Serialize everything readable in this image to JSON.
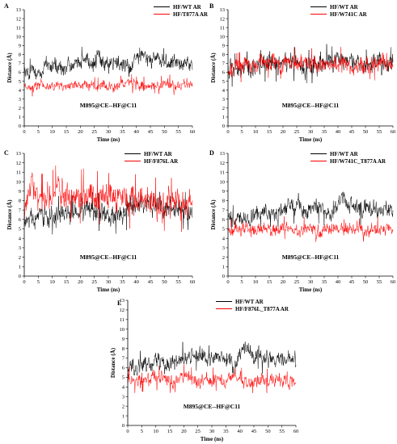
{
  "colors": {
    "wt": "#000000",
    "mutant": "#ff0000",
    "axis": "#000000"
  },
  "chart_data": [
    {
      "type": "line",
      "panel": "A",
      "xlabel": "Time (ns)",
      "ylabel": "Distance (Å)",
      "annotation": "M895@CE--HF@C11",
      "xlim": [
        0,
        60
      ],
      "ylim": [
        0,
        13
      ],
      "xticks": [
        0,
        5,
        10,
        15,
        20,
        25,
        30,
        35,
        40,
        45,
        50,
        55,
        60
      ],
      "yticks": [
        0,
        1,
        2,
        3,
        4,
        5,
        6,
        7,
        8,
        9,
        10,
        11,
        12,
        13
      ],
      "grid": false,
      "legend": "top-right",
      "series": [
        {
          "name": "HF/WT AR",
          "color": "#000000",
          "x": [
            0,
            2,
            4,
            6,
            8,
            10,
            12,
            14,
            16,
            18,
            20,
            22,
            24,
            26,
            28,
            30,
            32,
            34,
            36,
            38,
            40,
            42,
            44,
            46,
            48,
            50,
            52,
            54,
            56,
            58,
            60
          ],
          "y": [
            6.0,
            6.0,
            6.2,
            6.3,
            6.3,
            6.8,
            6.4,
            6.6,
            6.8,
            6.5,
            7.3,
            7.4,
            7.1,
            7.6,
            6.6,
            7.0,
            7.3,
            6.9,
            6.9,
            6.3,
            7.4,
            8.1,
            7.3,
            7.6,
            6.9,
            7.2,
            7.0,
            7.1,
            7.0,
            7.0,
            6.8
          ],
          "min": 5.2,
          "max": 9.2
        },
        {
          "name": "HF/T877A AR",
          "color": "#ff0000",
          "x": [
            0,
            2,
            4,
            6,
            8,
            10,
            12,
            14,
            16,
            18,
            20,
            22,
            24,
            26,
            28,
            30,
            32,
            34,
            36,
            38,
            40,
            42,
            44,
            46,
            48,
            50,
            52,
            54,
            56,
            58,
            60
          ],
          "y": [
            4.3,
            4.3,
            4.4,
            4.6,
            4.4,
            4.3,
            4.5,
            4.6,
            4.5,
            4.7,
            4.7,
            4.6,
            4.6,
            4.3,
            4.7,
            4.5,
            4.4,
            4.5,
            4.8,
            4.8,
            4.5,
            4.5,
            4.4,
            4.7,
            4.6,
            4.5,
            4.7,
            4.4,
            4.6,
            4.6,
            4.7
          ],
          "min": 3.3,
          "max": 6.0
        }
      ]
    },
    {
      "type": "line",
      "panel": "B",
      "xlabel": "Time (ns)",
      "ylabel": "Distance (Å)",
      "annotation": "M895@CE--HF@C11",
      "xlim": [
        0,
        60
      ],
      "ylim": [
        0,
        13
      ],
      "xticks": [
        0,
        5,
        10,
        15,
        20,
        25,
        30,
        35,
        40,
        45,
        50,
        55,
        60
      ],
      "yticks": [
        0,
        1,
        2,
        3,
        4,
        5,
        6,
        7,
        8,
        9,
        10,
        11,
        12,
        13
      ],
      "grid": false,
      "legend": "top-right",
      "series": [
        {
          "name": "HF/WT AR",
          "color": "#000000",
          "x": [
            0,
            2,
            4,
            6,
            8,
            10,
            12,
            14,
            16,
            18,
            20,
            22,
            24,
            26,
            28,
            30,
            32,
            34,
            36,
            38,
            40,
            42,
            44,
            46,
            48,
            50,
            52,
            54,
            56,
            58,
            60
          ],
          "y": [
            6.2,
            6.2,
            6.3,
            6.5,
            6.4,
            6.6,
            6.6,
            6.9,
            7.0,
            6.8,
            7.2,
            7.1,
            6.9,
            7.2,
            6.7,
            6.6,
            6.8,
            7.0,
            7.3,
            7.0,
            7.4,
            7.4,
            7.1,
            7.2,
            6.9,
            6.6,
            7.0,
            6.9,
            7.0,
            7.0,
            6.9
          ],
          "min": 4.4,
          "max": 9.3
        },
        {
          "name": "HF/W741C AR",
          "color": "#ff0000",
          "x": [
            0,
            2,
            4,
            6,
            8,
            10,
            12,
            14,
            16,
            18,
            20,
            22,
            24,
            26,
            28,
            30,
            32,
            34,
            36,
            38,
            40,
            42,
            44,
            46,
            48,
            50,
            52,
            54,
            56,
            58,
            60
          ],
          "y": [
            6.1,
            6.3,
            6.5,
            6.6,
            6.8,
            6.9,
            7.1,
            7.0,
            7.3,
            6.8,
            7.0,
            7.2,
            7.1,
            7.0,
            6.8,
            6.9,
            7.2,
            6.8,
            6.9,
            6.9,
            7.0,
            7.2,
            6.7,
            6.7,
            6.6,
            6.7,
            7.0,
            6.7,
            7.1,
            7.0,
            6.8
          ],
          "min": 4.9,
          "max": 9.4
        }
      ]
    },
    {
      "type": "line",
      "panel": "C",
      "xlabel": "Time (ns)",
      "ylabel": "Distance (Å)",
      "annotation": "M895@CE--HF@C11",
      "xlim": [
        0,
        60
      ],
      "ylim": [
        0,
        13
      ],
      "xticks": [
        0,
        5,
        10,
        15,
        20,
        25,
        30,
        35,
        40,
        45,
        50,
        55,
        60
      ],
      "yticks": [
        0,
        1,
        2,
        3,
        4,
        5,
        6,
        7,
        8,
        9,
        10,
        11,
        12,
        13
      ],
      "grid": false,
      "legend": "top-right",
      "series": [
        {
          "name": "HF/WT AR",
          "color": "#000000",
          "x": [
            0,
            2,
            4,
            6,
            8,
            10,
            12,
            14,
            16,
            18,
            20,
            22,
            24,
            26,
            28,
            30,
            32,
            34,
            36,
            38,
            40,
            42,
            44,
            46,
            48,
            50,
            52,
            54,
            56,
            58,
            60
          ],
          "y": [
            5.8,
            6.0,
            6.1,
            6.3,
            6.4,
            6.4,
            6.5,
            6.5,
            6.7,
            6.5,
            6.8,
            7.0,
            6.9,
            6.9,
            6.5,
            6.4,
            6.5,
            6.4,
            6.6,
            7.7,
            7.6,
            7.7,
            7.5,
            7.4,
            7.6,
            7.0,
            7.1,
            6.9,
            7.0,
            6.9,
            6.8
          ],
          "min": 3.8,
          "max": 9.0
        },
        {
          "name": "HF/F876L AR",
          "color": "#ff0000",
          "x": [
            0,
            1,
            2,
            3,
            4,
            6,
            8,
            10,
            12,
            14,
            16,
            18,
            20,
            22,
            24,
            26,
            28,
            30,
            32,
            34,
            36,
            38,
            40,
            42,
            44,
            46,
            48,
            50,
            52,
            54,
            56,
            58,
            60
          ],
          "y": [
            6.0,
            9.0,
            10.5,
            9.8,
            8.4,
            8.0,
            8.1,
            8.3,
            9.3,
            8.7,
            8.5,
            8.7,
            8.4,
            8.7,
            8.4,
            8.3,
            8.3,
            8.1,
            8.2,
            8.0,
            8.1,
            7.8,
            8.0,
            7.8,
            7.6,
            7.7,
            7.5,
            7.6,
            7.6,
            7.5,
            7.5,
            7.6,
            7.6
          ],
          "min": 4.3,
          "max": 11.7
        }
      ]
    },
    {
      "type": "line",
      "panel": "D",
      "xlabel": "Time (ns)",
      "ylabel": "Distance (Å)",
      "annotation": "M895@CE--HF@C11",
      "xlim": [
        0,
        60
      ],
      "ylim": [
        0,
        13
      ],
      "xticks": [
        0,
        5,
        10,
        15,
        20,
        25,
        30,
        35,
        40,
        45,
        50,
        55,
        60
      ],
      "yticks": [
        0,
        1,
        2,
        3,
        4,
        5,
        6,
        7,
        8,
        9,
        10,
        11,
        12,
        13
      ],
      "grid": false,
      "legend": "top-right",
      "series": [
        {
          "name": "HF/WT AR",
          "color": "#000000",
          "x": [
            0,
            2,
            4,
            6,
            8,
            10,
            12,
            14,
            16,
            18,
            20,
            22,
            24,
            26,
            28,
            30,
            32,
            34,
            36,
            38,
            40,
            42,
            44,
            46,
            48,
            50,
            52,
            54,
            56,
            58,
            60
          ],
          "y": [
            6.0,
            6.0,
            6.2,
            6.3,
            6.3,
            6.8,
            6.4,
            6.6,
            6.8,
            6.5,
            7.3,
            7.4,
            7.1,
            7.6,
            6.6,
            7.0,
            7.3,
            6.9,
            6.9,
            6.3,
            7.4,
            8.1,
            7.3,
            7.6,
            6.9,
            7.2,
            7.0,
            7.1,
            7.0,
            7.0,
            6.8
          ],
          "min": 5.2,
          "max": 9.2
        },
        {
          "name": "HF/W741C_T877A AR",
          "color": "#ff0000",
          "x": [
            0,
            2,
            4,
            6,
            8,
            10,
            12,
            14,
            16,
            18,
            20,
            22,
            24,
            26,
            28,
            30,
            32,
            34,
            36,
            38,
            40,
            42,
            44,
            46,
            48,
            50,
            52,
            54,
            56,
            58,
            60
          ],
          "y": [
            5.0,
            4.8,
            4.9,
            5.1,
            4.8,
            4.9,
            5.0,
            4.9,
            4.8,
            5.1,
            5.2,
            4.9,
            4.9,
            4.8,
            5.1,
            5.0,
            4.8,
            4.8,
            5.0,
            5.1,
            5.2,
            4.8,
            5.0,
            5.0,
            4.9,
            4.8,
            5.0,
            5.1,
            4.9,
            5.0,
            4.9
          ],
          "min": 3.4,
          "max": 6.5
        }
      ]
    },
    {
      "type": "line",
      "panel": "E",
      "xlabel": "Time (ns)",
      "ylabel": "Distance (Å)",
      "annotation": "M895@CE--HF@C11",
      "xlim": [
        0,
        60
      ],
      "ylim": [
        0,
        13
      ],
      "xticks": [
        0,
        5,
        10,
        15,
        20,
        25,
        30,
        35,
        40,
        45,
        50,
        55,
        60
      ],
      "yticks": [
        0,
        1,
        2,
        3,
        4,
        5,
        6,
        7,
        8,
        9,
        10,
        11,
        12,
        13
      ],
      "grid": false,
      "legend": "top-right",
      "series": [
        {
          "name": "HF/WT AR",
          "color": "#000000",
          "x": [
            0,
            2,
            4,
            6,
            8,
            10,
            12,
            14,
            16,
            18,
            20,
            22,
            24,
            26,
            28,
            30,
            32,
            34,
            36,
            38,
            40,
            42,
            44,
            46,
            48,
            50,
            52,
            54,
            56,
            58,
            60
          ],
          "y": [
            6.0,
            6.0,
            6.2,
            6.3,
            6.3,
            6.8,
            6.4,
            6.6,
            6.8,
            6.5,
            7.3,
            7.4,
            7.1,
            7.6,
            6.6,
            7.0,
            7.3,
            6.9,
            6.9,
            6.3,
            7.4,
            8.1,
            7.3,
            7.6,
            6.9,
            7.2,
            7.0,
            7.1,
            7.0,
            7.0,
            6.8
          ],
          "min": 5.2,
          "max": 9.2
        },
        {
          "name": "HF/F876L_T877A AR",
          "color": "#ff0000",
          "x": [
            0,
            2,
            4,
            6,
            8,
            10,
            12,
            14,
            16,
            18,
            20,
            22,
            24,
            26,
            28,
            30,
            32,
            34,
            36,
            38,
            40,
            42,
            44,
            46,
            48,
            50,
            52,
            54,
            56,
            58,
            60
          ],
          "y": [
            4.9,
            4.6,
            4.7,
            4.8,
            4.6,
            4.9,
            5.0,
            4.7,
            4.6,
            4.9,
            5.1,
            4.8,
            4.7,
            4.6,
            4.8,
            4.7,
            4.9,
            4.8,
            4.7,
            4.9,
            4.7,
            4.8,
            4.6,
            4.7,
            4.8,
            4.6,
            4.7,
            4.9,
            4.6,
            4.7,
            4.6
          ],
          "min": 3.3,
          "max": 6.6
        }
      ]
    }
  ]
}
